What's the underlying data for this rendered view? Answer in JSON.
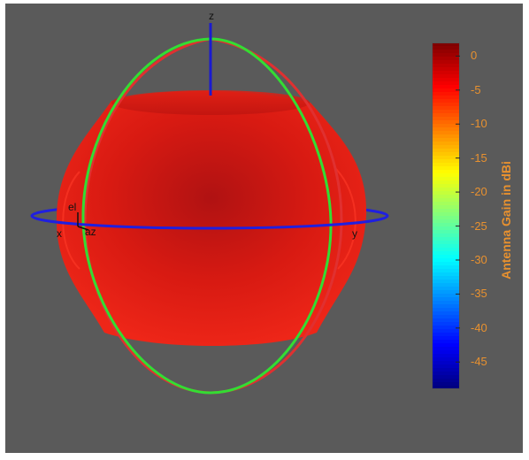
{
  "chart_data": {
    "type": "heatmap",
    "title": "",
    "colorbar": {
      "label": "Antenna Gain in dBi",
      "ticks": [
        0,
        -5,
        -10,
        -15,
        -20,
        -25,
        -30,
        -35,
        -40,
        -45
      ],
      "range": [
        -49,
        2
      ],
      "colormap": "jet",
      "label_color": "#e8912f"
    },
    "axes": {
      "x": "x",
      "y": "y",
      "z": "z",
      "az": "az",
      "el": "el"
    },
    "pattern": {
      "min_gain_dbi": -1,
      "max_gain_dbi": 1,
      "surface_color": "#e01a10"
    },
    "colors": {
      "background": "#5a5a5a",
      "azimuth_circle": "#1f1fe0",
      "elevation_circle": "#33dd33",
      "cut_circle": "#e03030",
      "z_axis": "#1a1ad0"
    }
  }
}
